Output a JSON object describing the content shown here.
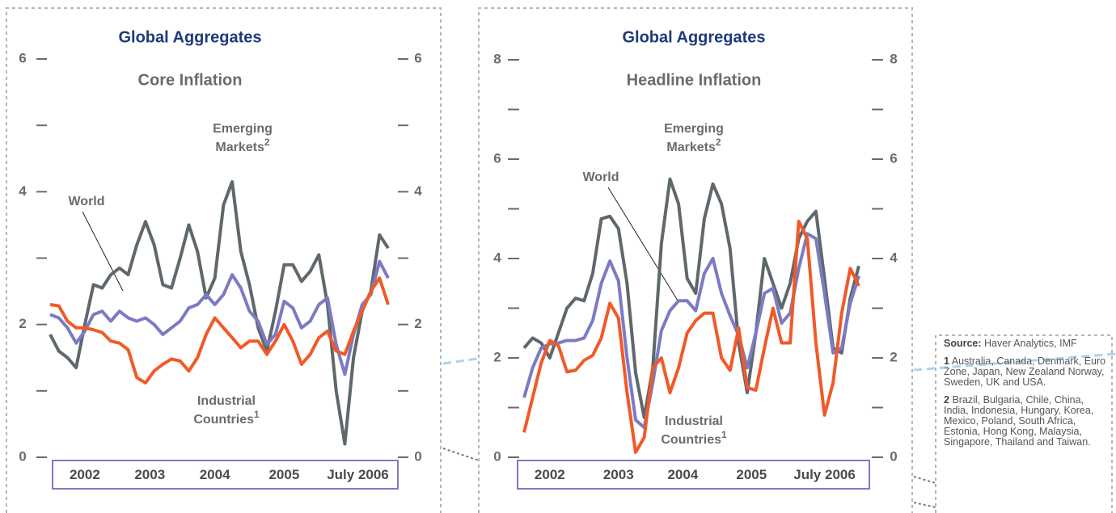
{
  "chart_data": [
    {
      "type": "line",
      "title": "Global Aggregates",
      "subtitle": "Core Inflation",
      "ylim": [
        0,
        6
      ],
      "yticks": [
        0,
        2,
        4,
        6
      ],
      "minor_yticks": [
        1,
        3,
        5
      ],
      "xlim": [
        0,
        39
      ],
      "xticks": [
        {
          "value": 4,
          "label": "2002"
        },
        {
          "value": 11.5,
          "label": "2003"
        },
        {
          "value": 19,
          "label": "2004"
        },
        {
          "value": 27,
          "label": "2005"
        },
        {
          "value": 35.5,
          "label": "July 2006"
        }
      ],
      "series": [
        {
          "label": [
            "Emerging",
            "Markets"
          ],
          "note": "2",
          "color": "#5f686c",
          "values": [
            1.85,
            1.6,
            1.5,
            1.35,
            2.0,
            2.6,
            2.55,
            2.75,
            2.85,
            2.75,
            3.2,
            3.55,
            3.2,
            2.6,
            2.55,
            3.0,
            3.5,
            3.1,
            2.4,
            2.7,
            3.8,
            4.15,
            3.1,
            2.6,
            1.95,
            1.6,
            2.2,
            2.9,
            2.9,
            2.65,
            2.8,
            3.05,
            2.3,
            1.0,
            0.2,
            1.5,
            2.2,
            2.5,
            3.35,
            3.15
          ]
        },
        {
          "label": [
            "World"
          ],
          "color": "#7b7bc4",
          "values": [
            2.15,
            2.1,
            1.95,
            1.72,
            1.9,
            2.15,
            2.2,
            2.05,
            2.2,
            2.1,
            2.05,
            2.1,
            2.0,
            1.85,
            1.95,
            2.05,
            2.25,
            2.3,
            2.45,
            2.3,
            2.45,
            2.75,
            2.55,
            2.2,
            2.05,
            1.7,
            1.85,
            2.35,
            2.25,
            1.95,
            2.05,
            2.3,
            2.4,
            1.7,
            1.25,
            1.85,
            2.3,
            2.45,
            2.95,
            2.7
          ]
        },
        {
          "label": [
            "Industrial",
            "Countries"
          ],
          "note": "1",
          "color": "#f05a28",
          "values": [
            2.3,
            2.28,
            2.05,
            1.95,
            1.95,
            1.92,
            1.88,
            1.75,
            1.72,
            1.62,
            1.2,
            1.12,
            1.3,
            1.4,
            1.48,
            1.45,
            1.3,
            1.5,
            1.85,
            2.1,
            1.95,
            1.8,
            1.65,
            1.75,
            1.75,
            1.55,
            1.75,
            2.0,
            1.75,
            1.4,
            1.55,
            1.8,
            1.9,
            1.6,
            1.55,
            1.9,
            2.2,
            2.5,
            2.7,
            2.3
          ]
        }
      ]
    },
    {
      "type": "line",
      "title": "Global Aggregates",
      "subtitle": "Headline Inflation",
      "ylim": [
        0,
        8
      ],
      "yticks": [
        0,
        2,
        4,
        6,
        8
      ],
      "minor_yticks": [
        1,
        3,
        5,
        7
      ],
      "xlim": [
        0,
        39
      ],
      "xticks": [
        {
          "value": 3,
          "label": "2002"
        },
        {
          "value": 11,
          "label": "2003"
        },
        {
          "value": 18.5,
          "label": "2004"
        },
        {
          "value": 26.5,
          "label": "2005"
        },
        {
          "value": 35,
          "label": "July 2006"
        }
      ],
      "series": [
        {
          "label": [
            "Emerging",
            "Markets"
          ],
          "note": "2",
          "color": "#5f686c",
          "values": [
            2.2,
            2.4,
            2.3,
            2.0,
            2.5,
            3.0,
            3.2,
            3.15,
            3.7,
            4.8,
            4.85,
            4.6,
            3.5,
            1.7,
            0.8,
            1.8,
            4.3,
            5.6,
            5.1,
            3.6,
            3.3,
            4.8,
            5.5,
            5.1,
            4.2,
            2.3,
            1.3,
            2.5,
            4.0,
            3.5,
            3.0,
            3.5,
            4.4,
            4.75,
            4.95,
            3.6,
            2.2,
            2.1,
            3.2,
            3.85
          ]
        },
        {
          "label": [
            "World"
          ],
          "color": "#7b7bc4",
          "values": [
            1.2,
            1.8,
            2.2,
            2.28,
            2.3,
            2.35,
            2.35,
            2.4,
            2.75,
            3.5,
            3.95,
            3.55,
            2.0,
            0.75,
            0.6,
            1.5,
            2.55,
            2.95,
            3.15,
            3.15,
            2.95,
            3.7,
            4.0,
            3.3,
            2.85,
            2.45,
            1.8,
            2.5,
            3.3,
            3.4,
            2.7,
            2.9,
            3.8,
            4.5,
            4.4,
            3.3,
            2.1,
            2.2,
            3.1,
            3.65
          ]
        },
        {
          "label": [
            "Industrial",
            "Countries"
          ],
          "note": "1",
          "color": "#f05a28",
          "values": [
            0.5,
            1.2,
            1.9,
            2.35,
            2.25,
            1.72,
            1.75,
            1.95,
            2.05,
            2.4,
            3.1,
            2.8,
            1.3,
            0.1,
            0.4,
            1.8,
            2.0,
            1.3,
            1.8,
            2.5,
            2.75,
            2.9,
            2.9,
            2.0,
            1.75,
            2.6,
            1.4,
            1.35,
            2.2,
            3.0,
            2.3,
            2.3,
            4.75,
            4.4,
            2.3,
            0.85,
            1.5,
            2.9,
            3.8,
            3.45
          ]
        }
      ]
    }
  ],
  "footnotes": {
    "source_label": "Source:",
    "source": "Haver Analytics, IMF",
    "notes": [
      {
        "num": "1",
        "text": "Australia, Canada, Denmark, Euro Zone, Japan, New Zealand Norway, Sweden, UK and USA."
      },
      {
        "num": "2",
        "text": "Brazil, Bulgaria, Chile, China, India, Indonesia, Hungary, Korea, Mexico, Poland, South Africa, Estonia, Hong Kong, Malaysia, Singapore, Thailand and Taiwan."
      }
    ]
  }
}
